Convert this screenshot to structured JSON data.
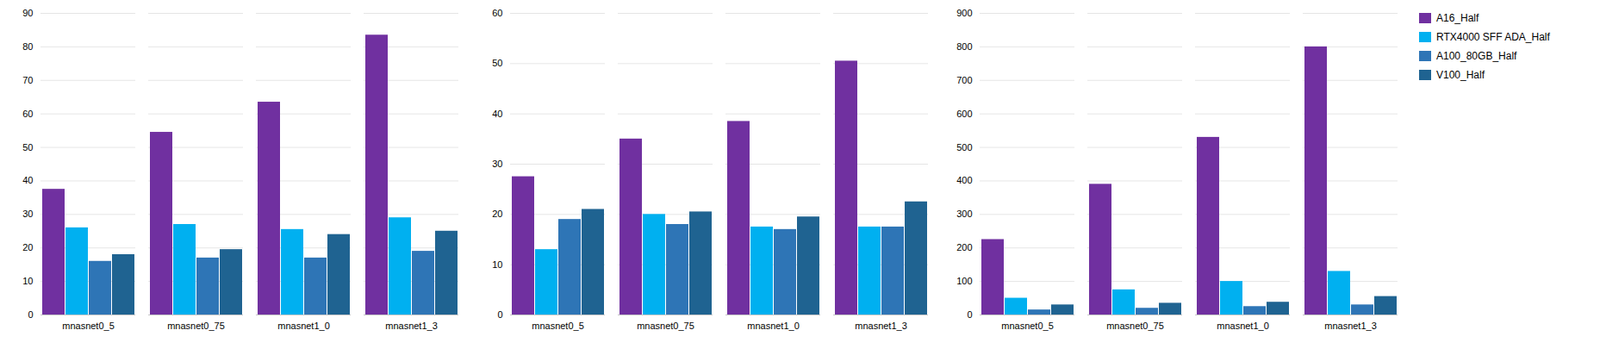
{
  "chart_data": [
    {
      "type": "bar",
      "categories": [
        "mnasnet0_5",
        "mnasnet0_75",
        "mnasnet1_0",
        "mnasnet1_3"
      ],
      "series": [
        {
          "name": "A16_Half",
          "color": "#7030A0",
          "values": [
            37.5,
            54.5,
            63.5,
            83.5
          ]
        },
        {
          "name": "RTX4000 SFF ADA_Half",
          "color": "#00B0F0",
          "values": [
            26.0,
            27.0,
            25.5,
            29.0
          ]
        },
        {
          "name": "A100_80GB_Half",
          "color": "#2E75B6",
          "values": [
            16.0,
            17.0,
            17.0,
            19.0
          ]
        },
        {
          "name": "V100_Half",
          "color": "#1F6391",
          "values": [
            18.0,
            19.5,
            24.0,
            25.0
          ]
        }
      ],
      "ylim": [
        0,
        90
      ],
      "yticks": [
        0,
        10,
        20,
        30,
        40,
        50,
        60,
        70,
        80,
        90
      ],
      "grid": true
    },
    {
      "type": "bar",
      "categories": [
        "mnasnet0_5",
        "mnasnet0_75",
        "mnasnet1_0",
        "mnasnet1_3"
      ],
      "series": [
        {
          "name": "A16_Half",
          "color": "#7030A0",
          "values": [
            27.5,
            35.0,
            38.5,
            50.5
          ]
        },
        {
          "name": "RTX4000 SFF ADA_Half",
          "color": "#00B0F0",
          "values": [
            13.0,
            20.0,
            17.5,
            17.5
          ]
        },
        {
          "name": "A100_80GB_Half",
          "color": "#2E75B6",
          "values": [
            19.0,
            18.0,
            17.0,
            17.5
          ]
        },
        {
          "name": "V100_Half",
          "color": "#1F6391",
          "values": [
            21.0,
            20.5,
            19.5,
            22.5
          ]
        }
      ],
      "ylim": [
        0,
        60
      ],
      "yticks": [
        0,
        10,
        20,
        30,
        40,
        50,
        60
      ],
      "grid": true
    },
    {
      "type": "bar",
      "categories": [
        "mnasnet0_5",
        "mnasnet0_75",
        "mnasnet1_0",
        "mnasnet1_3"
      ],
      "series": [
        {
          "name": "A16_Half",
          "color": "#7030A0",
          "values": [
            225,
            390,
            530,
            800
          ]
        },
        {
          "name": "RTX4000 SFF ADA_Half",
          "color": "#00B0F0",
          "values": [
            50,
            75,
            100,
            130
          ]
        },
        {
          "name": "A100_80GB_Half",
          "color": "#2E75B6",
          "values": [
            15,
            20,
            25,
            30
          ]
        },
        {
          "name": "V100_Half",
          "color": "#1F6391",
          "values": [
            30,
            35,
            38,
            55
          ]
        }
      ],
      "ylim": [
        0,
        900
      ],
      "yticks": [
        0,
        100,
        200,
        300,
        400,
        500,
        600,
        700,
        800,
        900
      ],
      "grid": true,
      "legend": "right"
    }
  ]
}
